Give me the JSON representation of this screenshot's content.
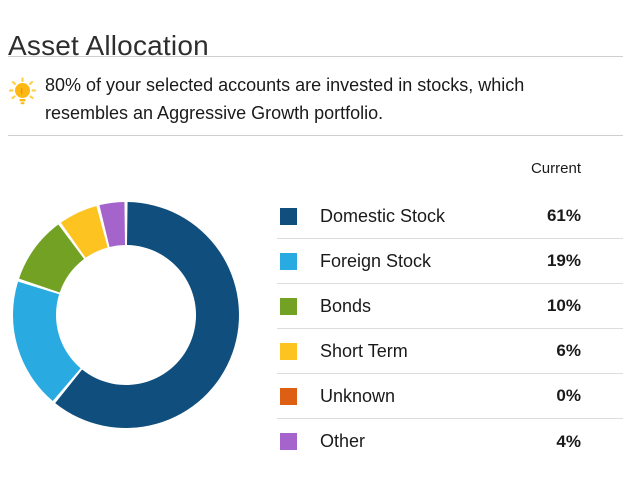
{
  "page": {
    "title": "Asset Allocation"
  },
  "tip": {
    "icon": "lightbulb-icon",
    "text": "80% of your selected accounts are invested in stocks, which resembles an Aggressive Growth portfolio."
  },
  "legend": {
    "column_header": "Current",
    "rows": [
      {
        "label": "Domestic Stock",
        "value": "61%",
        "color": "#0F4E7D"
      },
      {
        "label": "Foreign Stock",
        "value": "19%",
        "color": "#29ABE2"
      },
      {
        "label": "Bonds",
        "value": "10%",
        "color": "#73A123"
      },
      {
        "label": "Short Term",
        "value": "6%",
        "color": "#FDC321"
      },
      {
        "label": "Unknown",
        "value": "0%",
        "color": "#DD5F13"
      },
      {
        "label": "Other",
        "value": "4%",
        "color": "#A464CB"
      }
    ]
  },
  "chart_data": {
    "type": "pie",
    "subtype": "donut",
    "title": "Asset Allocation",
    "categories": [
      "Domestic Stock",
      "Foreign Stock",
      "Bonds",
      "Short Term",
      "Unknown",
      "Other"
    ],
    "values": [
      61,
      19,
      10,
      6,
      0,
      4
    ],
    "unit": "%",
    "colors": [
      "#0F4E7D",
      "#29ABE2",
      "#73A123",
      "#FDC321",
      "#DD5F13",
      "#A464CB"
    ],
    "start_angle_deg": -90,
    "direction": "clockwise",
    "inner_radius_ratio": 0.62,
    "slice_gap_color": "#ffffff",
    "legend_position": "right",
    "legend_value_column": "Current"
  },
  "icon_colors": {
    "bulb": "#FDB813",
    "rays": "#FFD04A",
    "filament": "#E89B00"
  }
}
